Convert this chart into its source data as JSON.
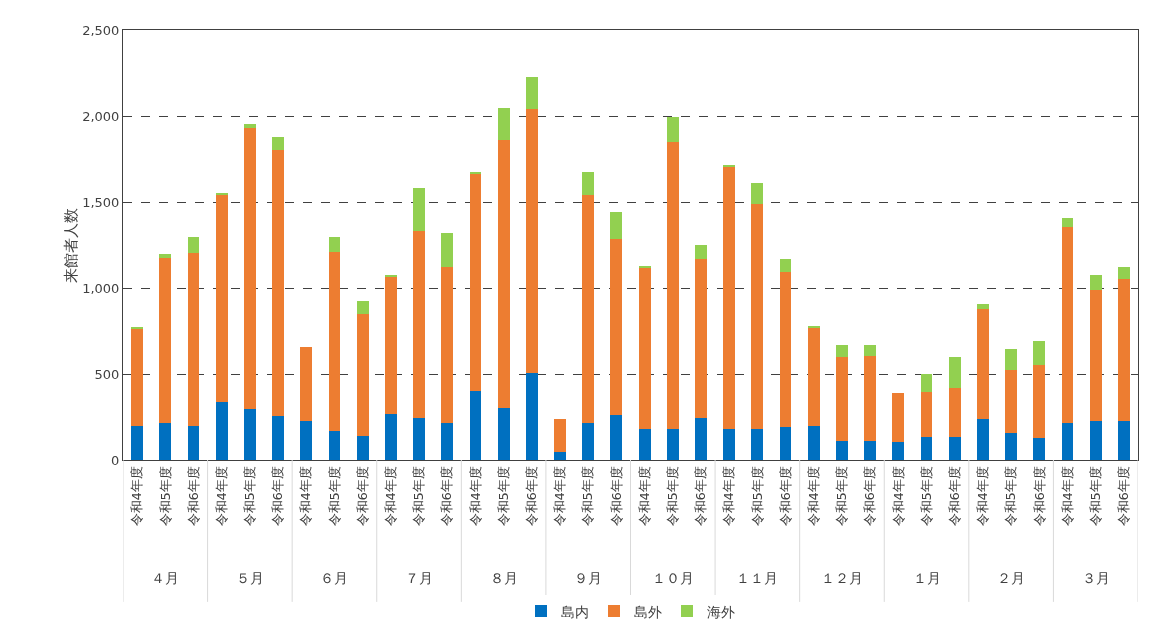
{
  "chart_data": {
    "type": "bar",
    "stacked": true,
    "ylabel": "来館者人数",
    "categories": [
      "令和4年度",
      "令和5年度",
      "令和6年度",
      "令和4年度",
      "令和5年度",
      "令和6年度",
      "令和4年度",
      "令和5年度",
      "令和6年度",
      "令和4年度",
      "令和5年度",
      "令和6年度",
      "令和4年度",
      "令和5年度",
      "令和6年度",
      "令和4年度",
      "令和5年度",
      "令和6年度",
      "令和4年度",
      "令和5年度",
      "令和6年度",
      "令和4年度",
      "令和5年度",
      "令和6年度",
      "令和4年度",
      "令和5年度",
      "令和6年度",
      "令和4年度",
      "令和5年度",
      "令和6年度",
      "令和4年度",
      "令和5年度",
      "令和6年度",
      "令和4年度",
      "令和5年度",
      "令和6年度"
    ],
    "series": [
      {
        "name": "島内",
        "color": "#0070c0",
        "values": [
          200,
          218,
          195,
          340,
          298,
          253,
          224,
          169,
          140,
          268,
          247,
          214,
          399,
          302,
          506,
          49,
          214,
          263,
          181,
          181,
          247,
          181,
          181,
          191,
          196,
          111,
          111,
          102,
          133,
          133,
          240,
          156,
          127,
          215,
          225,
          225
        ]
      },
      {
        "name": "島外",
        "color": "#ed7d31",
        "values": [
          565,
          955,
          1007,
          1203,
          1632,
          1550,
          434,
          1041,
          710,
          798,
          1082,
          911,
          1264,
          1556,
          1537,
          190,
          1329,
          1021,
          938,
          1667,
          920,
          1527,
          1307,
          904,
          576,
          489,
          494,
          289,
          263,
          283,
          639,
          367,
          426,
          1142,
          761,
          826
        ]
      },
      {
        "name": "海外",
        "color": "#92d050",
        "values": [
          5,
          27,
          92,
          5,
          25,
          74,
          0,
          88,
          74,
          10,
          253,
          194,
          10,
          191,
          185,
          0,
          130,
          156,
          6,
          146,
          84,
          8,
          123,
          72,
          9,
          70,
          65,
          0,
          102,
          180,
          29,
          122,
          140,
          49,
          92,
          72
        ]
      }
    ],
    "annotations": [
      "４月",
      "５月",
      "６月",
      "７月",
      "８月",
      "９月",
      "１０月",
      "１１月",
      "１２月",
      "１月",
      "２月",
      "３月"
    ],
    "ylim": [
      0,
      2500
    ],
    "yticks": [
      0,
      {
        "value": 500,
        "label": "500"
      },
      {
        "value": 1000,
        "label": "1,000"
      },
      {
        "value": 1500,
        "label": "1,500"
      },
      {
        "value": 2000,
        "label": "2,000"
      },
      {
        "value": 2500,
        "label": "2,500"
      }
    ],
    "grid": "y",
    "legend": "bottom"
  }
}
